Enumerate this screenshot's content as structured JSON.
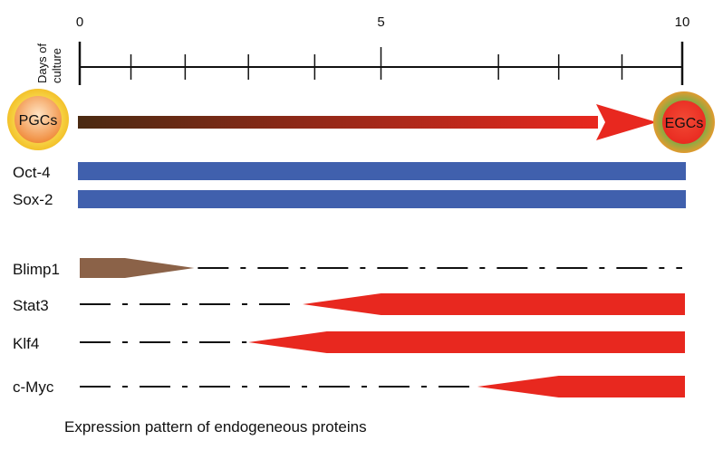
{
  "axis": {
    "title_line1": "Days of",
    "title_line2": "culture",
    "min": 0,
    "max": 10,
    "tick_labels": [
      "0",
      "5",
      "10"
    ],
    "minor_ticks": [
      0,
      0.85,
      1.75,
      2.8,
      3.9,
      5,
      6.95,
      7.95,
      9.0,
      10
    ]
  },
  "cells": {
    "start": {
      "label": "PGCs",
      "ring_color": "#f7d64a",
      "core_color": "#f08a3a"
    },
    "end": {
      "label": "EGCs",
      "ring_color": "#6ab04c",
      "core_color": "#e8281f"
    }
  },
  "transition": {
    "from_color": "#4a2a12",
    "to_color": "#e8281f",
    "from_day": 0,
    "to_day": 10
  },
  "proteins": [
    {
      "name": "Oct-4",
      "style": "bar",
      "color": "#4060ad",
      "from_day": 0,
      "to_day": 10
    },
    {
      "name": "Sox-2",
      "style": "bar",
      "color": "#4060ad",
      "from_day": 0,
      "to_day": 10
    },
    {
      "name": "Blimp1",
      "style": "taper-right",
      "color": "#8b6248",
      "full_to_day": 0.75,
      "tip_day": 1.9,
      "from_day": 0
    },
    {
      "name": "Stat3",
      "style": "taper-left",
      "color": "#e8281f",
      "tip_day": 3.7,
      "full_from_day": 5.0,
      "to_day": 10
    },
    {
      "name": "Klf4",
      "style": "taper-left",
      "color": "#e8281f",
      "tip_day": 2.8,
      "full_from_day": 4.1,
      "to_day": 10
    },
    {
      "name": "c-Myc",
      "style": "taper-left",
      "color": "#e8281f",
      "tip_day": 6.6,
      "full_from_day": 7.95,
      "to_day": 10
    }
  ],
  "caption": "Expression pattern of endogeneous proteins"
}
